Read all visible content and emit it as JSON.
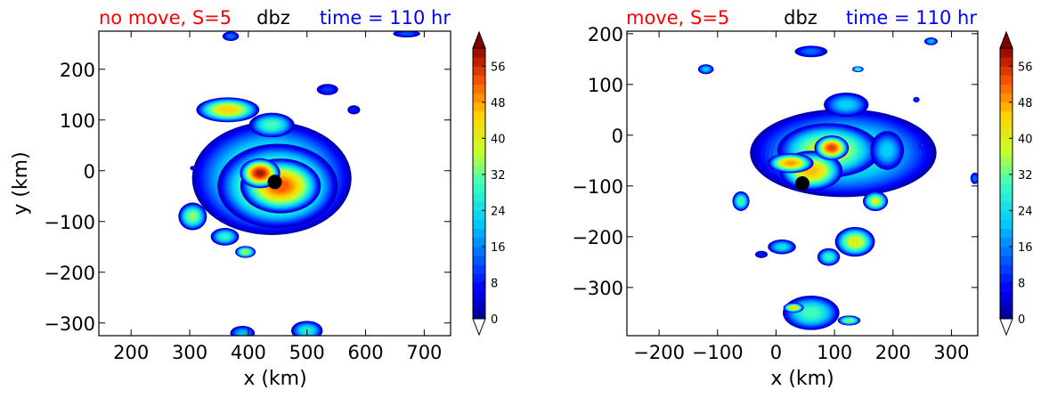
{
  "chart_data": [
    {
      "type": "heatmap",
      "id": "left",
      "title_left": "no move, S=5",
      "title_center": "dbz",
      "title_right": "time = 110 hr",
      "title_colors": {
        "left": "#ff0000",
        "center": "#000000",
        "right": "#0000ff"
      },
      "xlabel": "x (km)",
      "ylabel": "y (km)",
      "xlim": [
        145,
        745
      ],
      "ylim": [
        -325,
        275
      ],
      "xticks": [
        200,
        300,
        400,
        500,
        600,
        700
      ],
      "yticks": [
        -300,
        -200,
        -100,
        0,
        100,
        200
      ],
      "storm_center": {
        "x": 445,
        "y": -22
      },
      "colorbar": {
        "min": 0,
        "max": 60,
        "ticks": [
          0,
          8,
          16,
          24,
          32,
          40,
          48,
          56
        ],
        "extend": "both"
      },
      "cells": [
        {
          "x": 440,
          "y": -15,
          "rx": 140,
          "ry": 115,
          "peak": 34
        },
        {
          "x": 450,
          "y": -30,
          "rx": 105,
          "ry": 85,
          "peak": 44
        },
        {
          "x": 455,
          "y": -30,
          "rx": 70,
          "ry": 55,
          "peak": 52
        },
        {
          "x": 420,
          "y": -5,
          "rx": 35,
          "ry": 30,
          "peak": 58
        },
        {
          "x": 365,
          "y": 120,
          "rx": 55,
          "ry": 25,
          "peak": 44
        },
        {
          "x": 440,
          "y": 90,
          "rx": 40,
          "ry": 25,
          "peak": 30
        },
        {
          "x": 305,
          "y": -90,
          "rx": 25,
          "ry": 28,
          "peak": 34
        },
        {
          "x": 360,
          "y": -130,
          "rx": 25,
          "ry": 18,
          "peak": 28
        },
        {
          "x": 535,
          "y": 160,
          "rx": 20,
          "ry": 12,
          "peak": 10
        },
        {
          "x": 580,
          "y": 120,
          "rx": 12,
          "ry": 10,
          "peak": 8
        },
        {
          "x": 395,
          "y": -160,
          "rx": 18,
          "ry": 12,
          "peak": 36
        },
        {
          "x": 500,
          "y": -315,
          "rx": 28,
          "ry": 20,
          "peak": 26
        },
        {
          "x": 390,
          "y": -320,
          "rx": 22,
          "ry": 15,
          "peak": 20
        },
        {
          "x": 370,
          "y": 265,
          "rx": 15,
          "ry": 10,
          "peak": 14
        },
        {
          "x": 670,
          "y": 270,
          "rx": 25,
          "ry": 8,
          "peak": 12
        },
        {
          "x": 305,
          "y": 5,
          "rx": 5,
          "ry": 5,
          "peak": 6
        }
      ]
    },
    {
      "type": "heatmap",
      "id": "right",
      "title_left": "move, S=5",
      "title_center": "dbz",
      "title_right": "time = 110 hr",
      "title_colors": {
        "left": "#ff0000",
        "center": "#000000",
        "right": "#0000ff"
      },
      "xlabel": "x (km)",
      "ylabel": "",
      "xlim": [
        -255,
        345
      ],
      "ylim": [
        -395,
        205
      ],
      "xticks": [
        -200,
        -100,
        0,
        100,
        200,
        300
      ],
      "yticks": [
        -300,
        -200,
        -100,
        0,
        100,
        200
      ],
      "storm_center": {
        "x": 45,
        "y": -95
      },
      "colorbar": {
        "min": 0,
        "max": 60,
        "ticks": [
          0,
          8,
          16,
          24,
          32,
          40,
          48,
          56
        ],
        "extend": "both"
      },
      "cells": [
        {
          "x": 115,
          "y": -35,
          "rx": 165,
          "ry": 90,
          "peak": 28
        },
        {
          "x": 90,
          "y": -30,
          "rx": 90,
          "ry": 55,
          "peak": 40
        },
        {
          "x": 60,
          "y": -70,
          "rx": 55,
          "ry": 40,
          "peak": 46
        },
        {
          "x": 95,
          "y": -25,
          "rx": 30,
          "ry": 25,
          "peak": 54
        },
        {
          "x": 25,
          "y": -55,
          "rx": 40,
          "ry": 20,
          "peak": 48
        },
        {
          "x": 190,
          "y": -30,
          "rx": 30,
          "ry": 40,
          "peak": 22
        },
        {
          "x": 120,
          "y": 60,
          "rx": 40,
          "ry": 25,
          "peak": 22
        },
        {
          "x": 170,
          "y": -130,
          "rx": 22,
          "ry": 20,
          "peak": 38
        },
        {
          "x": 135,
          "y": -210,
          "rx": 35,
          "ry": 30,
          "peak": 40
        },
        {
          "x": 90,
          "y": -240,
          "rx": 20,
          "ry": 18,
          "peak": 28
        },
        {
          "x": -60,
          "y": -130,
          "rx": 15,
          "ry": 20,
          "peak": 30
        },
        {
          "x": 10,
          "y": -220,
          "rx": 25,
          "ry": 15,
          "peak": 24
        },
        {
          "x": -25,
          "y": -235,
          "rx": 12,
          "ry": 8,
          "peak": 8
        },
        {
          "x": 60,
          "y": -350,
          "rx": 50,
          "ry": 35,
          "peak": 30
        },
        {
          "x": 30,
          "y": -340,
          "rx": 18,
          "ry": 10,
          "peak": 44
        },
        {
          "x": 125,
          "y": -365,
          "rx": 20,
          "ry": 10,
          "peak": 34
        },
        {
          "x": -120,
          "y": 130,
          "rx": 14,
          "ry": 10,
          "peak": 22
        },
        {
          "x": 60,
          "y": 165,
          "rx": 30,
          "ry": 12,
          "peak": 14
        },
        {
          "x": 140,
          "y": 130,
          "rx": 10,
          "ry": 6,
          "peak": 30
        },
        {
          "x": 265,
          "y": 185,
          "rx": 12,
          "ry": 8,
          "peak": 20
        },
        {
          "x": 240,
          "y": 70,
          "rx": 6,
          "ry": 6,
          "peak": 10
        },
        {
          "x": 340,
          "y": -85,
          "rx": 8,
          "ry": 12,
          "peak": 14
        },
        {
          "x": 250,
          "y": -20,
          "rx": 6,
          "ry": 6,
          "peak": 10
        }
      ]
    }
  ]
}
